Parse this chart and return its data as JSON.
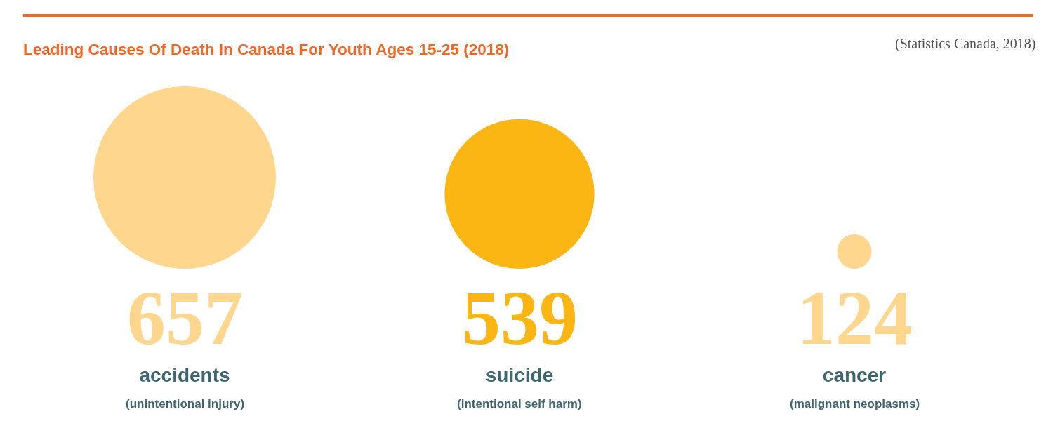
{
  "chart_data": {
    "type": "other",
    "title": "Leading Causes Of Death In Canada For Youth Ages 15-25 (2018)",
    "categories": [
      "accidents",
      "suicide",
      "cancer"
    ],
    "values": [
      657,
      539,
      124
    ],
    "colors": [
      "#fed68e",
      "#fbb614",
      "#fed68e"
    ],
    "data_labels": true,
    "annotations": [
      "(Statistics Canada, 2018)",
      {
        "text": "(unintentional injury)",
        "x": "accidents"
      },
      {
        "text": "(intentional self harm)",
        "x": "suicide"
      },
      {
        "text": "(malignant neoplasms)",
        "x": "cancer"
      }
    ]
  }
}
